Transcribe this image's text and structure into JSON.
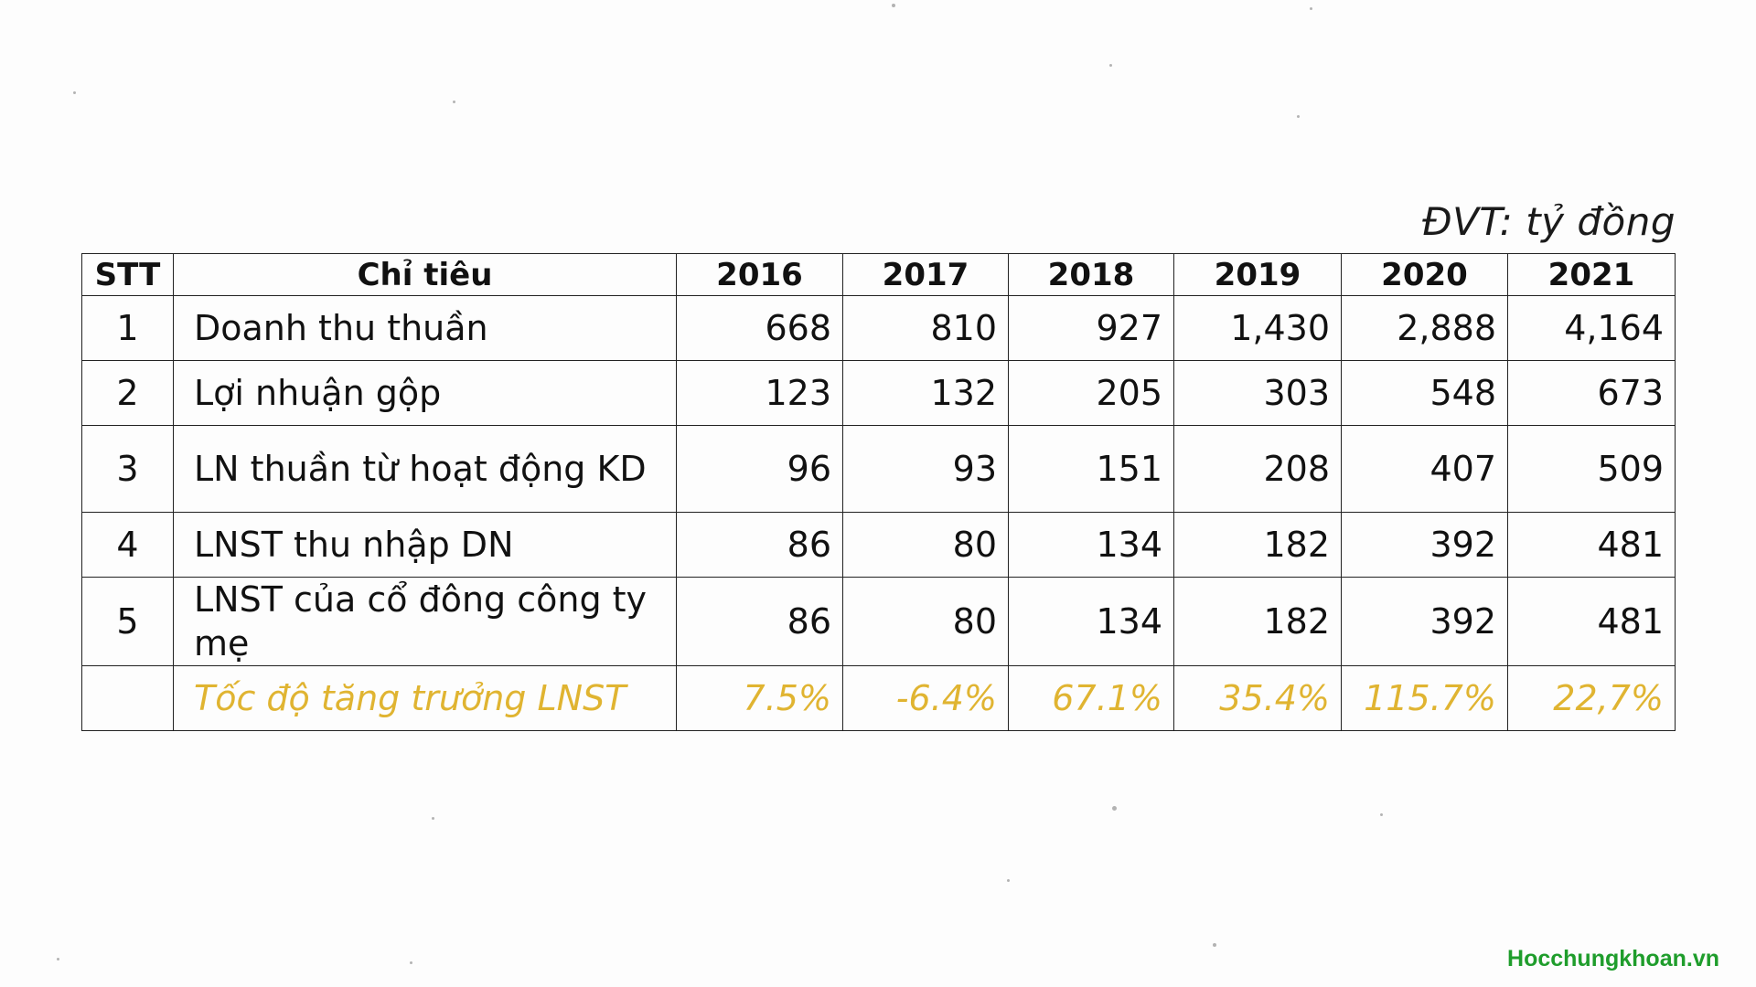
{
  "unit_note": "ĐVT: tỷ đồng",
  "table": {
    "headers": [
      "STT",
      "Chỉ tiêu",
      "2016",
      "2017",
      "2018",
      "2019",
      "2020",
      "2021"
    ],
    "rows": [
      {
        "stt": "1",
        "label": "Doanh thu thuần",
        "values": [
          "668",
          "810",
          "927",
          "1,430",
          "2,888",
          "4,164"
        ]
      },
      {
        "stt": "2",
        "label": "Lợi nhuận gộp",
        "values": [
          "123",
          "132",
          "205",
          "303",
          "548",
          "673"
        ]
      },
      {
        "stt": "3",
        "label": "LN thuần từ hoạt động KD",
        "values": [
          "96",
          "93",
          "151",
          "208",
          "407",
          "509"
        ]
      },
      {
        "stt": "4",
        "label": "LNST thu nhập DN",
        "values": [
          "86",
          "80",
          "134",
          "182",
          "392",
          "481"
        ]
      },
      {
        "stt": "5",
        "label": "LNST của cổ đông công ty mẹ",
        "values": [
          "86",
          "80",
          "134",
          "182",
          "392",
          "481"
        ]
      }
    ],
    "growth_row": {
      "stt": "",
      "label": "Tốc độ tăng trưởng LNST",
      "values": [
        "7.5%",
        "-6.4%",
        "67.1%",
        "35.4%",
        "115.7%",
        "22,7%"
      ]
    }
  },
  "colors": {
    "growth_text": "#e0b431",
    "watermark": "#1f9d2c",
    "border": "#222222"
  },
  "watermark": "Hocchungkhoan.vn"
}
